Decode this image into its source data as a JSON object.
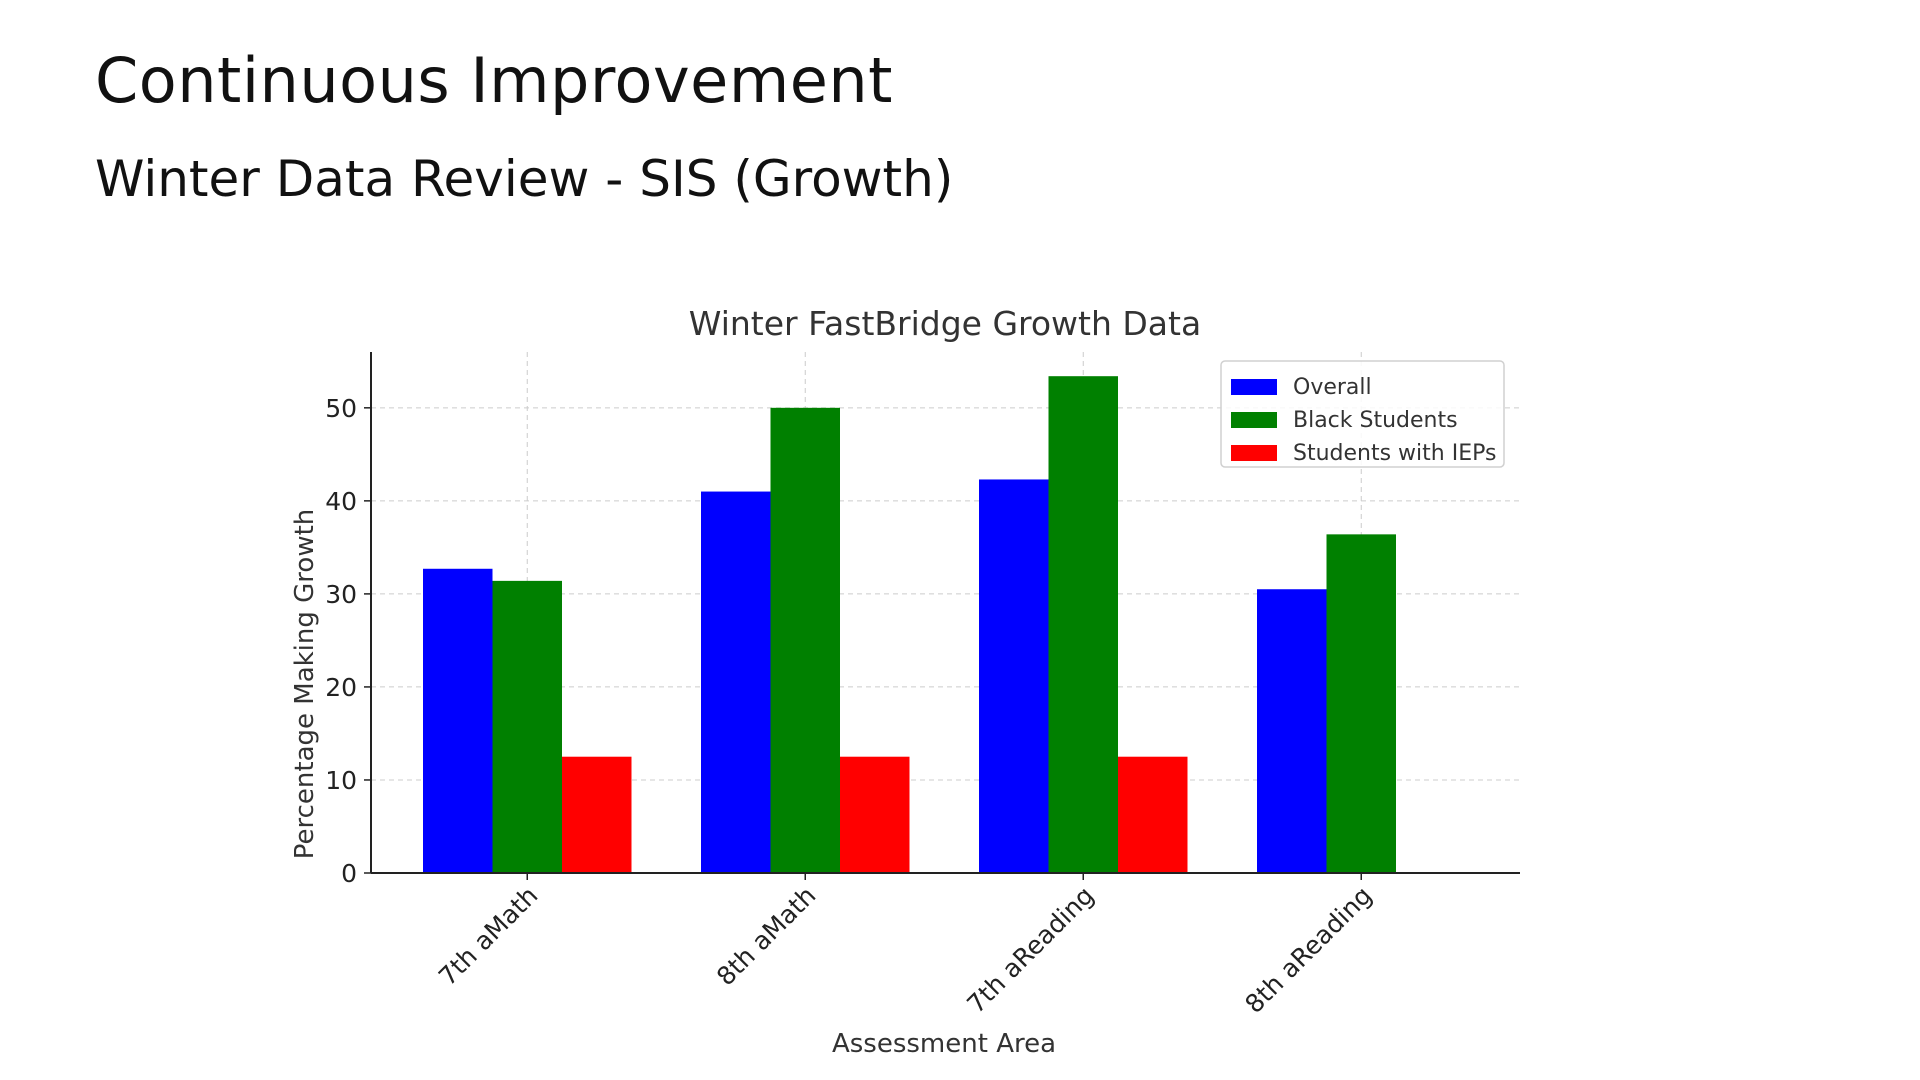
{
  "slide": {
    "title": "Continuous Improvement",
    "subtitle": "Winter Data Review - SIS (Growth)"
  },
  "chart_data": {
    "type": "bar",
    "title": "Winter FastBridge Growth Data",
    "xlabel": "Assessment Area",
    "ylabel": "Percentage Making Growth",
    "categories": [
      "7th aMath",
      "8th aMath",
      "7th aReading",
      "8th aReading"
    ],
    "series": [
      {
        "name": "Overall",
        "color": "#0000ff",
        "values": [
          32.7,
          41.0,
          42.3,
          30.5
        ]
      },
      {
        "name": "Black Students",
        "color": "#008000",
        "values": [
          31.4,
          50.0,
          53.4,
          36.4
        ]
      },
      {
        "name": "Students with IEPs",
        "color": "#ff0000",
        "values": [
          12.5,
          12.5,
          12.5,
          0
        ]
      }
    ],
    "yticks": [
      0,
      10,
      20,
      30,
      40,
      50
    ],
    "ylim": [
      0,
      56
    ],
    "grid": true,
    "legend_position": "top-right"
  }
}
